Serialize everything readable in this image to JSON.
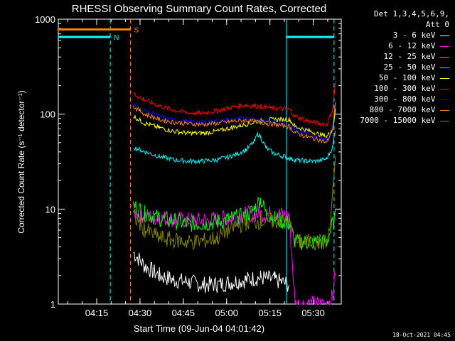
{
  "chart_data": {
    "type": "line",
    "title": "RHESSI Observing Summary Count Rates, Corrected",
    "xlabel": "Start Time (09-Jun-04 04:01:42)",
    "ylabel": "Corrected Count Rate (s⁻¹ detector⁻¹)",
    "yscale": "log",
    "ylim": [
      1,
      1000
    ],
    "xlim_minutes": [
      0,
      98
    ],
    "x_unit": "minutes after 04:01:42",
    "yticks": [
      {
        "value": 1,
        "label": "1"
      },
      {
        "value": 10,
        "label": "10"
      },
      {
        "value": 100,
        "label": "100"
      },
      {
        "value": 1000,
        "label": "1000"
      }
    ],
    "xticks": [
      {
        "value": 13.3,
        "label": "04:15"
      },
      {
        "value": 28.3,
        "label": "04:30"
      },
      {
        "value": 43.3,
        "label": "04:45"
      },
      {
        "value": 58.3,
        "label": "05:00"
      },
      {
        "value": 73.3,
        "label": "05:15"
      },
      {
        "value": 88.3,
        "label": "05:30"
      }
    ],
    "legend_title": "Det 1,3,4,5,6,9,",
    "legend_att": "Att 0",
    "series": [
      {
        "name": "3 - 6 keV",
        "color": "#ffffff",
        "x": [
          26,
          30,
          35,
          40,
          45,
          50,
          55,
          60,
          65,
          70,
          75,
          80,
          82,
          86,
          90,
          94,
          95,
          96
        ],
        "y": [
          3.5,
          2.5,
          2,
          1.8,
          1.7,
          1.6,
          1.6,
          1.7,
          1.8,
          1.9,
          1.8,
          1.6,
          null,
          null,
          null,
          null,
          null,
          null
        ]
      },
      {
        "name": "6 - 12 keV",
        "color": "#ff00ff",
        "x": [
          26,
          30,
          35,
          40,
          45,
          50,
          55,
          60,
          65,
          70,
          75,
          80,
          82,
          86,
          90,
          93,
          95,
          96
        ],
        "y": [
          9.5,
          8.5,
          8,
          7.8,
          7.6,
          7.6,
          7.8,
          8.3,
          8.7,
          8.8,
          9,
          8.6,
          1,
          1,
          1,
          1,
          1.2,
          2.2
        ]
      },
      {
        "name": "12 - 25 keV",
        "color": "#00ff00",
        "x": [
          26,
          30,
          35,
          40,
          45,
          50,
          55,
          60,
          65,
          68,
          70,
          72,
          75,
          80,
          82,
          86,
          90,
          93,
          95,
          96
        ],
        "y": [
          11,
          9,
          8,
          7.5,
          7,
          7,
          7.3,
          8,
          8.5,
          10,
          13,
          9,
          8,
          7,
          4.5,
          4.5,
          4.5,
          4.5,
          7,
          8
        ]
      },
      {
        "name": "25 - 50 keV",
        "color": "#00ffff",
        "x": [
          26,
          30,
          35,
          40,
          45,
          50,
          55,
          60,
          65,
          68,
          69,
          70,
          72,
          75,
          78,
          80,
          82,
          86,
          90,
          93,
          95,
          96
        ],
        "y": [
          45,
          40,
          36,
          33,
          32,
          32,
          33,
          36,
          42,
          52,
          62,
          58,
          44,
          38,
          36,
          34,
          33,
          32,
          32,
          34,
          45,
          70
        ]
      },
      {
        "name": "50 - 100 keV",
        "color": "#ffff00",
        "x": [
          26,
          30,
          35,
          40,
          45,
          50,
          55,
          60,
          65,
          70,
          75,
          80,
          82,
          86,
          90,
          93,
          95,
          96
        ],
        "y": [
          95,
          80,
          72,
          66,
          63,
          63,
          66,
          72,
          78,
          85,
          88,
          88,
          74,
          68,
          62,
          58,
          70,
          110
        ]
      },
      {
        "name": "100 - 300 keV",
        "color": "#ff0000",
        "x": [
          26,
          30,
          35,
          40,
          45,
          50,
          55,
          60,
          65,
          70,
          75,
          80,
          82,
          86,
          90,
          93,
          95,
          96
        ],
        "y": [
          165,
          140,
          122,
          110,
          103,
          102,
          108,
          118,
          125,
          120,
          115,
          112,
          95,
          85,
          80,
          78,
          110,
          220
        ]
      },
      {
        "name": "300 - 800 keV",
        "color": "#0000ff",
        "x": [
          26,
          30,
          35,
          40,
          45,
          50,
          55,
          60,
          65,
          70,
          75,
          80,
          82,
          86,
          90,
          93,
          95,
          96
        ],
        "y": [
          125,
          108,
          95,
          87,
          83,
          82,
          84,
          88,
          91,
          86,
          82,
          78,
          68,
          62,
          58,
          54,
          75,
          140
        ]
      },
      {
        "name": "800 - 7000 keV",
        "color": "#ff8000",
        "x": [
          26,
          30,
          35,
          40,
          45,
          50,
          55,
          60,
          65,
          70,
          75,
          80,
          82,
          86,
          90,
          93,
          95,
          96
        ],
        "y": [
          120,
          100,
          88,
          82,
          79,
          78,
          80,
          84,
          86,
          82,
          78,
          74,
          64,
          58,
          54,
          50,
          70,
          130
        ]
      },
      {
        "name": "7000 - 15000 keV",
        "color": "#808000",
        "x": [
          26,
          30,
          35,
          40,
          45,
          50,
          55,
          60,
          65,
          70,
          75,
          80,
          82,
          86,
          90,
          93,
          94,
          95,
          96
        ],
        "y": [
          8.5,
          6,
          5,
          4.7,
          4.5,
          4.6,
          5,
          6.3,
          7.2,
          7.5,
          7.5,
          7.3,
          4.5,
          4.5,
          4.5,
          4.5,
          6,
          15,
          35
        ]
      }
    ],
    "flag_bars": [
      {
        "label": "S",
        "color": "#ff8000",
        "x": [
          0,
          25
        ],
        "y": 780
      },
      {
        "label": "N",
        "color": "#00ffff",
        "x": [
          0,
          18
        ],
        "y": 650
      },
      {
        "label": "",
        "color": "#00ffff",
        "x": [
          79,
          95.5
        ],
        "y": 650
      }
    ],
    "vlines": [
      {
        "x": 18,
        "color": "#00ffff",
        "style": "dashed"
      },
      {
        "x": 25,
        "color": "#ff8000",
        "style": "dashed"
      },
      {
        "x": 79,
        "color": "#00ffff",
        "style": "solid"
      },
      {
        "x": 95.5,
        "color": "#00ffff",
        "style": "dashed"
      }
    ]
  },
  "footer": {
    "timestamp": "18-Oct-2021 04:45"
  }
}
